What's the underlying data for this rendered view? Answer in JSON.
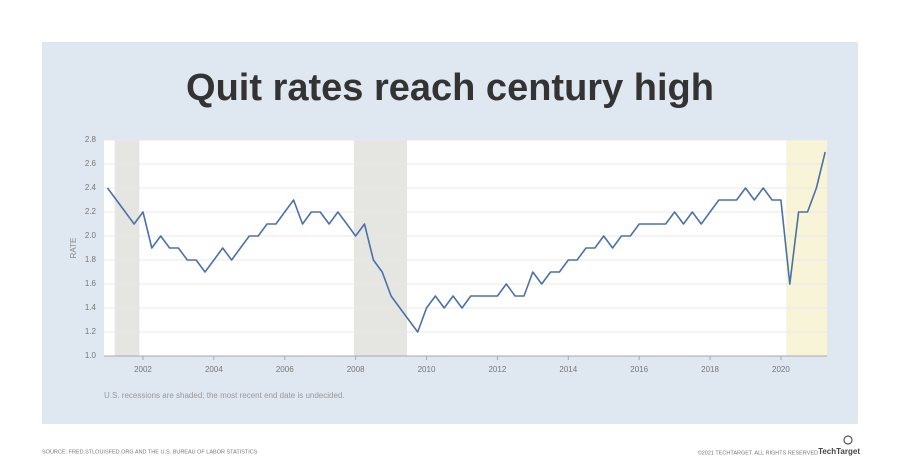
{
  "chart_data": {
    "type": "line",
    "title": "Quit rates reach century high",
    "y_label": "RATE",
    "note": "U.S. recessions are shaded; the most recent end date is undecided.",
    "source": "SOURCE: FRED.STLOUISFED.ORG AND THE U.S. BUREAU OF LABOR STATISTICS",
    "copyright": "©2021 TECHTARGET. ALL RIGHTS RESERVED",
    "brand": "TechTarget",
    "xlim": [
      2000.9,
      2021.3
    ],
    "xticks": [
      2002,
      2004,
      2006,
      2008,
      2010,
      2012,
      2014,
      2016,
      2018,
      2020
    ],
    "ylim": [
      1,
      2.8
    ],
    "yticks": [
      {
        "value": 1,
        "label": "1.0"
      },
      1.2,
      1.4,
      1.6,
      1.8,
      {
        "value": 2,
        "label": "2.0"
      },
      2.2,
      2.4,
      2.6,
      2.8
    ],
    "grid": true,
    "recessions": [
      {
        "start": 2001.2,
        "end": 2001.9,
        "color": "#e5e5e1"
      },
      {
        "start": 2007.95,
        "end": 2009.45,
        "color": "#e5e5e1"
      },
      {
        "start": 2020.15,
        "end": 2021.3,
        "color": "#f7f4d8"
      }
    ],
    "series": [
      {
        "name": "Quit rate",
        "color": "#4a72a8",
        "x": [
          2001,
          2001.25,
          2001.5,
          2001.75,
          2002,
          2002.25,
          2002.5,
          2002.75,
          2003,
          2003.25,
          2003.5,
          2003.75,
          2004,
          2004.25,
          2004.5,
          2004.75,
          2005,
          2005.25,
          2005.5,
          2005.75,
          2006,
          2006.25,
          2006.5,
          2006.75,
          2007,
          2007.25,
          2007.5,
          2007.75,
          2008,
          2008.25,
          2008.5,
          2008.75,
          2009,
          2009.25,
          2009.5,
          2009.75,
          2010,
          2010.25,
          2010.5,
          2010.75,
          2011,
          2011.25,
          2011.5,
          2011.75,
          2012,
          2012.25,
          2012.5,
          2012.75,
          2013,
          2013.25,
          2013.5,
          2013.75,
          2014,
          2014.25,
          2014.5,
          2014.75,
          2015,
          2015.25,
          2015.5,
          2015.75,
          2016,
          2016.25,
          2016.5,
          2016.75,
          2017,
          2017.25,
          2017.5,
          2017.75,
          2018,
          2018.25,
          2018.5,
          2018.75,
          2019,
          2019.25,
          2019.5,
          2019.75,
          2020,
          2020.25,
          2020.5,
          2020.75,
          2021,
          2021.25
        ],
        "values": [
          2.4,
          2.3,
          2.2,
          2.1,
          2.2,
          1.9,
          2.0,
          1.9,
          1.9,
          1.8,
          1.8,
          1.7,
          1.8,
          1.9,
          1.8,
          1.9,
          2.0,
          2.0,
          2.1,
          2.1,
          2.2,
          2.3,
          2.1,
          2.2,
          2.2,
          2.1,
          2.2,
          2.1,
          2.0,
          2.1,
          1.8,
          1.7,
          1.5,
          1.4,
          1.3,
          1.2,
          1.4,
          1.5,
          1.4,
          1.5,
          1.4,
          1.5,
          1.5,
          1.5,
          1.5,
          1.6,
          1.5,
          1.5,
          1.7,
          1.6,
          1.7,
          1.7,
          1.8,
          1.8,
          1.9,
          1.9,
          2.0,
          1.9,
          2.0,
          2.0,
          2.1,
          2.1,
          2.1,
          2.1,
          2.2,
          2.1,
          2.2,
          2.1,
          2.2,
          2.3,
          2.3,
          2.3,
          2.4,
          2.3,
          2.4,
          2.3,
          2.3,
          1.6,
          2.2,
          2.2,
          2.4,
          2.7
        ]
      }
    ]
  }
}
